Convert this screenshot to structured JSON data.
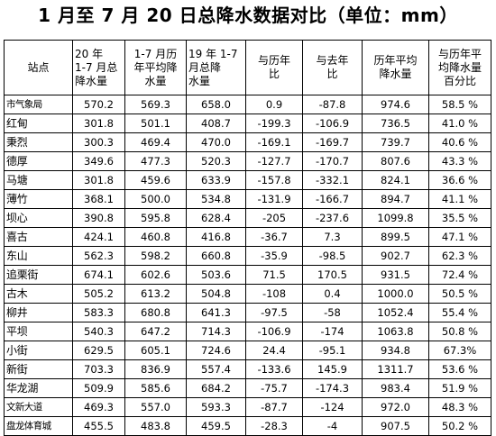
{
  "title": "1 月至 7 月 20 日总降水数据对比（单位：mm）",
  "headers": [
    "站点",
    "20 年\n1-7 月总\n降水量",
    "1-7 月历\n年平均降\n水量",
    "19 年 1-7\n月总降\n水量",
    "与历年\n比",
    "与去年\n比",
    "历年平均\n降水量",
    "与历年平\n均降水量\n百分比"
  ],
  "rows": [
    [
      "市气象局",
      "570.2",
      "569.3",
      "658.0",
      "0.9",
      "-87.8",
      "974.6",
      "58.5 %"
    ],
    [
      "红甸",
      "301.8",
      "501.1",
      "408.7",
      "-199.3",
      "-106.9",
      "736.5",
      "41.0 %"
    ],
    [
      "秉烈",
      "300.3",
      "469.4",
      "470.0",
      "-169.1",
      "-169.7",
      "739.7",
      "40.6 %"
    ],
    [
      "德厚",
      "349.6",
      "477.3",
      "520.3",
      "-127.7",
      "-170.7",
      "807.6",
      "43.3 %"
    ],
    [
      "马塘",
      "301.8",
      "459.6",
      "633.9",
      "-157.8",
      "-332.1",
      "824.1",
      "36.6 %"
    ],
    [
      "薄竹",
      "368.1",
      "500.0",
      "534.8",
      "-131.9",
      "-166.7",
      "894.7",
      "41.1 %"
    ],
    [
      "坝心",
      "390.8",
      "595.8",
      "628.4",
      "-205",
      "-237.6",
      "1099.8",
      "35.5 %"
    ],
    [
      "喜古",
      "424.1",
      "460.8",
      "416.8",
      "-36.7",
      "7.3",
      "899.5",
      "47.1 %"
    ],
    [
      "东山",
      "562.3",
      "598.2",
      "660.8",
      "-35.9",
      "-98.5",
      "902.7",
      "62.3 %"
    ],
    [
      "追栗街",
      "674.1",
      "602.6",
      "503.6",
      "71.5",
      "170.5",
      "931.5",
      "72.4 %"
    ],
    [
      "古木",
      "505.2",
      "613.2",
      "504.8",
      "-108",
      "0.4",
      "1000.0",
      "50.5 %"
    ],
    [
      "柳井",
      "583.3",
      "680.8",
      "641.3",
      "-97.5",
      "-58",
      "1052.4",
      "55.4 %"
    ],
    [
      "平坝",
      "540.3",
      "647.2",
      "714.3",
      "-106.9",
      "-174",
      "1063.8",
      "50.8 %"
    ],
    [
      "小街",
      "629.5",
      "605.1",
      "724.6",
      "24.4",
      "-95.1",
      "934.8",
      "67.3%"
    ],
    [
      "新街",
      "703.3",
      "836.9",
      "557.4",
      "-133.6",
      "145.9",
      "1311.7",
      "53.6 %"
    ],
    [
      "华龙湖",
      "509.9",
      "585.6",
      "684.2",
      "-75.7",
      "-174.3",
      "983.4",
      "51.9 %"
    ],
    [
      "文新大道",
      "469.3",
      "557.0",
      "593.3",
      "-87.7",
      "-124",
      "972.0",
      "48.3 %"
    ],
    [
      "盘龙体育城",
      "455.5",
      "483.8",
      "459.5",
      "-28.3",
      "-4",
      "907.5",
      "50.2 %"
    ]
  ]
}
